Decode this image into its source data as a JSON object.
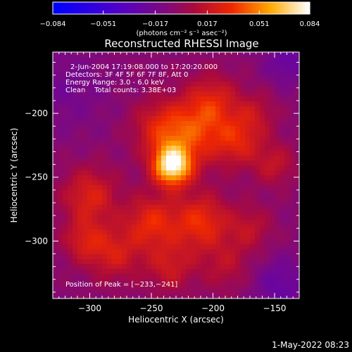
{
  "chart_data": {
    "type": "heatmap",
    "title": "Reconstructed RHESSI Image",
    "xlabel": "Heliocentric X (arcsec)",
    "ylabel": "Heliocentric Y (arcsec)",
    "x_range": [
      -330,
      -130
    ],
    "y_range": [
      -345,
      -152
    ],
    "x_ticks": [
      -300,
      -250,
      -200,
      -150
    ],
    "y_ticks": [
      -200,
      -250,
      -300
    ],
    "x_tick_labels": [
      "−300",
      "−250",
      "−200",
      "−150"
    ],
    "y_tick_labels": [
      "−200",
      "−250",
      "−300"
    ],
    "colorbar": {
      "min": -0.084,
      "max": 0.084,
      "ticks": [
        -0.084,
        -0.051,
        -0.017,
        0.017,
        0.051,
        0.084
      ],
      "tick_labels": [
        "−0.084",
        "−0.051",
        "−0.017",
        "0.017",
        "0.051",
        "0.084"
      ],
      "unit_label": "(photons cm⁻² s⁻¹ asec⁻²)"
    },
    "colors": {
      "negative": "#0000ff",
      "zero": "#a00050",
      "positive": "#ff5000",
      "max": "#ffffff"
    },
    "peak": [
      -233,
      -241
    ],
    "sources": [
      {
        "x": -233,
        "y": -241,
        "amp": 0.084,
        "sigma": 11
      },
      {
        "x": -243,
        "y": -212,
        "amp": 0.03,
        "sigma": 16
      },
      {
        "x": -215,
        "y": -215,
        "amp": 0.035,
        "sigma": 18
      },
      {
        "x": -180,
        "y": -222,
        "amp": 0.03,
        "sigma": 14
      },
      {
        "x": -200,
        "y": -190,
        "amp": 0.028,
        "sigma": 15
      },
      {
        "x": -250,
        "y": -285,
        "amp": 0.035,
        "sigma": 15
      },
      {
        "x": -210,
        "y": -285,
        "amp": 0.038,
        "sigma": 16
      },
      {
        "x": -170,
        "y": -290,
        "amp": 0.02,
        "sigma": 13
      },
      {
        "x": -300,
        "y": -265,
        "amp": 0.032,
        "sigma": 16
      },
      {
        "x": -280,
        "y": -310,
        "amp": 0.028,
        "sigma": 15
      },
      {
        "x": -305,
        "y": -300,
        "amp": 0.025,
        "sigma": 12
      },
      {
        "x": -235,
        "y": -320,
        "amp": 0.025,
        "sigma": 14
      },
      {
        "x": -190,
        "y": -320,
        "amp": 0.018,
        "sigma": 14
      },
      {
        "x": -150,
        "y": -240,
        "amp": 0.022,
        "sigma": 12
      },
      {
        "x": -165,
        "y": -200,
        "amp": 0.018,
        "sigma": 12
      },
      {
        "x": -145,
        "y": -335,
        "amp": -0.02,
        "sigma": 15
      },
      {
        "x": -320,
        "y": -180,
        "amp": -0.012,
        "sigma": 22
      },
      {
        "x": -140,
        "y": -160,
        "amp": -0.02,
        "sigma": 12
      }
    ]
  },
  "info": {
    "line1": "2-Jun-2004 17:19:08.000 to 17:20:20.000",
    "line2": "Detectors: 3F 4F 5F 6F 7F 8F, Att 0",
    "line3": "Energy Range: 3.0 - 6.0 keV",
    "line4": "Clean    Total counts: 3.38E+03",
    "peak_label": "Position of Peak = [−233,−241]"
  },
  "footer": {
    "date": "1-May-2022 08:23"
  }
}
